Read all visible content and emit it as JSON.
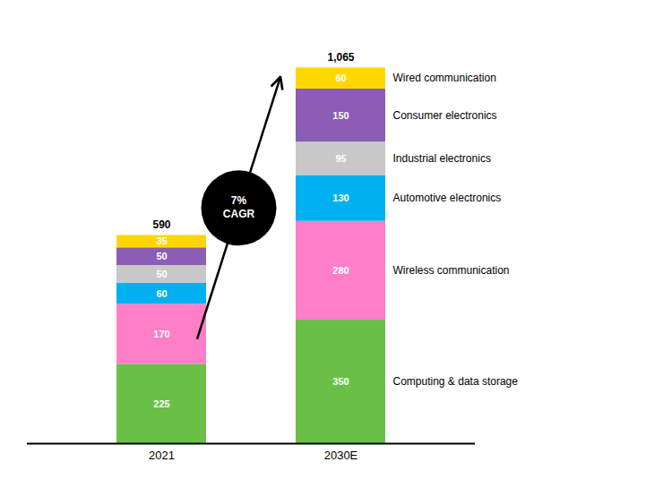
{
  "chart_data": {
    "type": "bar",
    "stacked": true,
    "categories": [
      "2021",
      "2030E"
    ],
    "series": [
      {
        "name": "Computing & data storage",
        "color": "#6ABF47",
        "values": [
          225,
          350
        ]
      },
      {
        "name": "Wireless communication",
        "color": "#FF7EC8",
        "values": [
          170,
          280
        ]
      },
      {
        "name": "Automotive electronics",
        "color": "#00B0F0",
        "values": [
          60,
          130
        ]
      },
      {
        "name": "Industrial electronics",
        "color": "#C8C8C8",
        "values": [
          50,
          95
        ]
      },
      {
        "name": "Consumer electronics",
        "color": "#8B5DB5",
        "values": [
          50,
          150
        ]
      },
      {
        "name": "Wired communication",
        "color": "#FFD700",
        "values": [
          35,
          60
        ]
      }
    ],
    "totals": {
      "values": [
        590,
        1065
      ],
      "value_labels": [
        "590",
        "1,065"
      ]
    },
    "annotations": [
      "7%\nCAGR"
    ],
    "data_labels": true,
    "legend": "right",
    "grid": false,
    "tick_labels": "x",
    "ylim": [
      0,
      1180
    ]
  }
}
